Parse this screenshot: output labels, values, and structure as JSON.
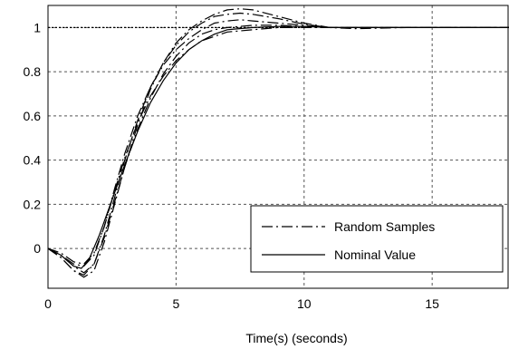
{
  "chart_data": {
    "type": "line",
    "title": "",
    "xlabel": "Time(s) (seconds)",
    "ylabel": "",
    "xlim": [
      0,
      18
    ],
    "ylim": [
      -0.18,
      1.1
    ],
    "grid": true,
    "legend_position": "bottom-right",
    "x_ticks": [
      {
        "value": 0,
        "label": "0"
      },
      {
        "value": 5,
        "label": "5"
      },
      {
        "value": 10,
        "label": "10"
      },
      {
        "value": 15,
        "label": "15"
      }
    ],
    "y_ticks": [
      {
        "value": 0,
        "label": "0"
      },
      {
        "value": 0.2,
        "label": "0.2"
      },
      {
        "value": 0.4,
        "label": "0.4"
      },
      {
        "value": 0.6,
        "label": "0.6"
      },
      {
        "value": 0.8,
        "label": "0.8"
      },
      {
        "value": 1,
        "label": "1"
      }
    ],
    "reference_line": {
      "y": 1,
      "style": "dotted"
    },
    "legend": [
      {
        "label": "Random Samples",
        "style": "dashdot"
      },
      {
        "label": "Nominal Value",
        "style": "solid"
      }
    ],
    "series": [
      {
        "legend_index": 1,
        "style": "solid",
        "x": [
          0,
          0.5,
          1,
          1.3,
          1.6,
          2,
          2.5,
          3,
          3.5,
          4,
          4.5,
          5,
          5.5,
          6,
          6.5,
          7,
          8,
          9,
          10,
          11,
          12,
          14,
          16,
          18
        ],
        "y": [
          0,
          -0.03,
          -0.08,
          -0.09,
          -0.05,
          0.06,
          0.22,
          0.38,
          0.53,
          0.66,
          0.76,
          0.84,
          0.9,
          0.94,
          0.97,
          0.99,
          1.0,
          1.005,
          1.005,
          1.0,
          1.0,
          1.0,
          1.0,
          1.0
        ]
      },
      {
        "legend_index": 0,
        "style": "dashdot",
        "x": [
          0,
          0.5,
          1,
          1.4,
          1.8,
          2.2,
          2.6,
          3,
          3.5,
          4,
          4.5,
          5,
          5.5,
          6,
          6.5,
          7,
          7.5,
          8,
          9,
          10,
          11,
          12,
          14,
          16,
          18
        ],
        "y": [
          0,
          -0.04,
          -0.1,
          -0.13,
          -0.1,
          0.03,
          0.2,
          0.37,
          0.56,
          0.72,
          0.84,
          0.93,
          0.99,
          1.03,
          1.06,
          1.08,
          1.085,
          1.08,
          1.05,
          1.02,
          1.0,
          0.995,
          1.0,
          1.0,
          1.0
        ]
      },
      {
        "legend_index": 0,
        "style": "dashdot",
        "x": [
          0,
          0.5,
          1,
          1.4,
          1.8,
          2.2,
          2.6,
          3,
          3.5,
          4,
          4.5,
          5,
          5.5,
          6,
          6.5,
          7,
          7.5,
          8,
          9,
          10,
          11,
          12,
          14,
          16,
          18
        ],
        "y": [
          0,
          -0.03,
          -0.08,
          -0.11,
          -0.07,
          0.06,
          0.23,
          0.4,
          0.58,
          0.73,
          0.84,
          0.92,
          0.98,
          1.02,
          1.05,
          1.06,
          1.065,
          1.06,
          1.04,
          1.015,
          1.0,
          1.0,
          1.0,
          1.0,
          1.0
        ]
      },
      {
        "legend_index": 0,
        "style": "dashdot",
        "x": [
          0,
          0.5,
          1,
          1.4,
          1.8,
          2.2,
          2.6,
          3,
          3.5,
          4,
          4.5,
          5,
          5.5,
          6,
          6.5,
          7,
          7.5,
          8,
          9,
          10,
          11,
          12,
          14,
          16,
          18
        ],
        "y": [
          0,
          -0.03,
          -0.07,
          -0.08,
          -0.03,
          0.1,
          0.27,
          0.43,
          0.6,
          0.73,
          0.83,
          0.9,
          0.95,
          0.99,
          1.02,
          1.03,
          1.035,
          1.03,
          1.02,
          1.01,
          1.0,
          1.0,
          1.0,
          1.0,
          1.0
        ]
      },
      {
        "legend_index": 0,
        "style": "dashdot",
        "x": [
          0,
          0.5,
          1,
          1.4,
          1.8,
          2.2,
          2.6,
          3,
          3.5,
          4,
          4.5,
          5,
          5.5,
          6,
          6.5,
          7,
          8,
          9,
          10,
          11,
          12,
          14,
          16,
          18
        ],
        "y": [
          0,
          -0.04,
          -0.1,
          -0.12,
          -0.07,
          0.05,
          0.21,
          0.37,
          0.54,
          0.68,
          0.79,
          0.87,
          0.93,
          0.97,
          0.99,
          1.0,
          1.01,
          1.01,
          1.005,
          1.0,
          1.0,
          1.0,
          1.0,
          1.0
        ]
      },
      {
        "legend_index": 0,
        "style": "dashdot",
        "x": [
          0,
          0.5,
          1,
          1.4,
          1.8,
          2.2,
          2.6,
          3,
          3.5,
          4,
          4.5,
          5,
          5.5,
          6,
          6.5,
          7,
          8,
          9,
          10,
          11,
          12,
          14,
          16,
          18
        ],
        "y": [
          0,
          -0.02,
          -0.06,
          -0.07,
          -0.02,
          0.1,
          0.26,
          0.41,
          0.57,
          0.69,
          0.78,
          0.85,
          0.9,
          0.94,
          0.96,
          0.98,
          0.99,
          1.0,
          1.0,
          1.0,
          1.0,
          1.0,
          1.0,
          1.0
        ]
      }
    ]
  }
}
